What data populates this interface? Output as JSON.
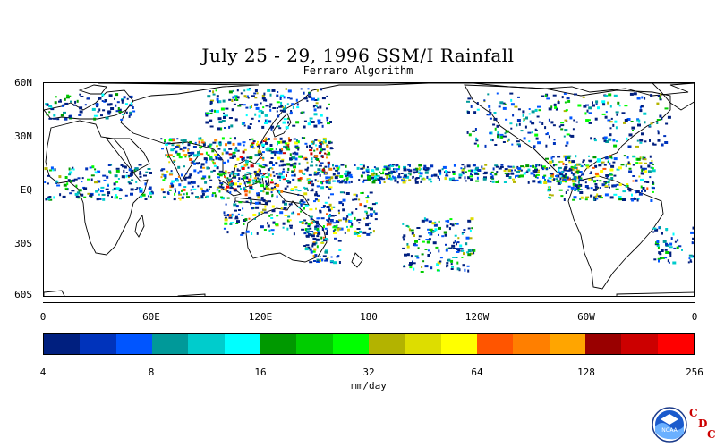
{
  "title": "July 25 - 29, 1996 SSM/I Rainfall",
  "subtitle": "Ferraro Algorithm",
  "lat_labels": [
    "60N",
    "30N",
    "EQ",
    "30S",
    "60S"
  ],
  "lon_labels": [
    "0",
    "60E",
    "120E",
    "180",
    "120W",
    "60W",
    "0"
  ],
  "colorbar": {
    "units": "mm/day",
    "tick_labels": [
      "4",
      "8",
      "16",
      "32",
      "64",
      "128",
      "256"
    ],
    "colors": [
      "#001f7f",
      "#0033bb",
      "#0055ff",
      "#009999",
      "#00cccc",
      "#00ffff",
      "#009900",
      "#00cc00",
      "#00ff00",
      "#b3b300",
      "#dddd00",
      "#ffff00",
      "#ff5500",
      "#ff7f00",
      "#ffa500",
      "#990000",
      "#cc0000",
      "#ff0000"
    ]
  },
  "logo": {
    "noaa_text": "NOAA",
    "cdc_letters": [
      "C",
      "D",
      "C"
    ]
  }
}
